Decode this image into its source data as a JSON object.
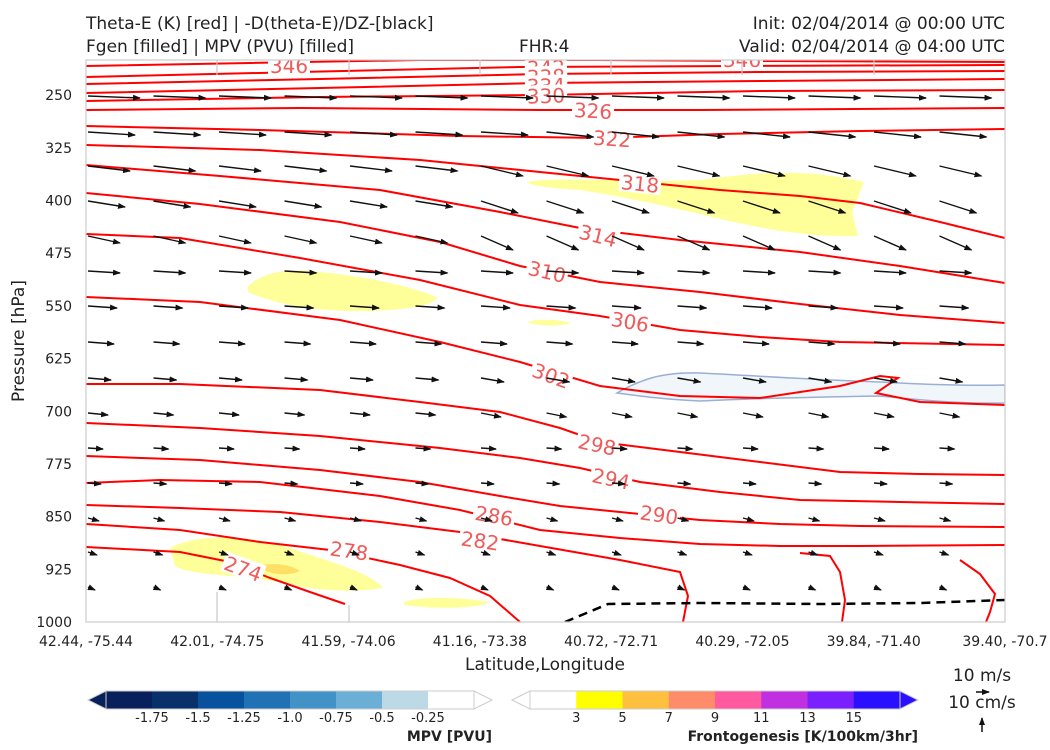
{
  "header": {
    "title_line1": "Theta-E (K) [red] | -D(theta-E)/DZ-[black]",
    "title_line2": "Fgen [filled] | MPV (PVU) [filled]",
    "fhr": "FHR:4",
    "init": "Init: 02/04/2014 @ 00:00 UTC",
    "valid": "Valid: 02/04/2014 @ 04:00 UTC"
  },
  "chart_data": {
    "type": "cross-section",
    "xlabel": "Latitude,Longitude",
    "ylabel": "Pressure [hPa]",
    "x_ticks": [
      "42.44, -75.44",
      "42.01, -74.75",
      "41.59, -74.06",
      "41.16, -73.38",
      "40.72, -72.71",
      "40.29, -72.05",
      "39.84, -71.40",
      "39.40, -70.7"
    ],
    "y_ticks": [
      250,
      325,
      400,
      475,
      550,
      625,
      700,
      775,
      850,
      925,
      1000
    ],
    "ylim": [
      1000,
      200
    ],
    "theta_e_contours": {
      "color": "#ff0000",
      "levels": [
        274,
        278,
        282,
        286,
        290,
        294,
        298,
        302,
        306,
        310,
        314,
        318,
        322,
        326,
        330,
        334,
        338,
        342,
        346
      ],
      "labeled": [
        "346",
        "342",
        "338",
        "334",
        "330",
        "326",
        "322",
        "318",
        "314",
        "310",
        "306",
        "302",
        "298",
        "294",
        "290",
        "286",
        "282",
        "278",
        "274",
        "346"
      ]
    },
    "stability_contour": {
      "color": "#000000",
      "style": "dashed",
      "value": 0
    },
    "wind_reference": {
      "horizontal": "10 m/s",
      "vertical": "10 cm/s"
    },
    "colorbars": [
      {
        "title": "MPV [PVU]",
        "ticks": [
          "-1.75",
          "-1.5",
          "-1.25",
          "-1.0",
          "-0.75",
          "-0.5",
          "-0.25"
        ],
        "colors": [
          "#08215c",
          "#08306b",
          "#08519c",
          "#2171b5",
          "#4292c6",
          "#6baed6",
          "#bcd9e6",
          "#ffffff"
        ]
      },
      {
        "title": "Frontogenesis [K/100km/3hr]",
        "ticks": [
          "3",
          "5",
          "7",
          "9",
          "11",
          "13",
          "15"
        ],
        "colors": [
          "#ffffff",
          "#ffff00",
          "#ffc040",
          "#ff8c69",
          "#ff5aa0",
          "#c030e0",
          "#7a20ff",
          "#2a10ff"
        ]
      }
    ]
  }
}
